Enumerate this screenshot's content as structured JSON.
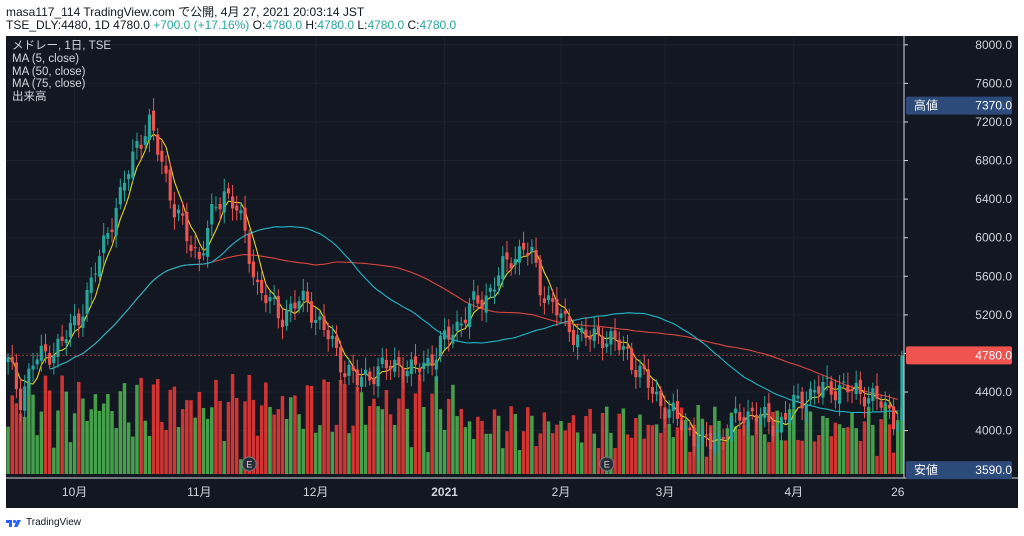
{
  "header": {
    "line1": "masa117_114 TradingView.com で公開, 4月 27, 2021 20:03:14 JST",
    "symbol_prefix": "TSE_DLY:4480, 1D 4780.0",
    "change": "+700.0 (+17.16%)",
    "ohlc": [
      {
        "label": "O:",
        "value": "4780.0"
      },
      {
        "label": "H:",
        "value": "4780.0"
      },
      {
        "label": "L:",
        "value": "4780.0"
      },
      {
        "label": "C:",
        "value": "4780.0"
      }
    ]
  },
  "legend": [
    "メドレー, 1日, TSE",
    "MA (5, close)",
    "MA (50, close)",
    "MA (75, close)",
    "出来高"
  ],
  "footer": {
    "brand": "TradingView"
  },
  "colors": {
    "up": "#26a69a",
    "down": "#ef5350",
    "vol_up": "#4caf50",
    "vol_down": "#e53935",
    "ma5": "#e6d21e",
    "ma50": "#1fb7c8",
    "ma75": "#d9463e",
    "bg": "#131722",
    "text": "#d1d4dc"
  },
  "chart_data": {
    "type": "candlestick",
    "y_ticks": [
      "8000.0",
      "7600.0",
      "7200.0",
      "6800.0",
      "6400.0",
      "6000.0",
      "5600.0",
      "5200.0",
      "4800.0",
      "4400.0",
      "4000.0"
    ],
    "y_tick_values": [
      8000,
      7600,
      7200,
      6800,
      6400,
      6000,
      5600,
      5200,
      4800,
      4400,
      4000
    ],
    "ylim": [
      3550,
      8050
    ],
    "x_labels": [
      {
        "label": "10月",
        "index": 16
      },
      {
        "label": "11月",
        "index": 46
      },
      {
        "label": "12月",
        "index": 74
      },
      {
        "label": "2021",
        "index": 105
      },
      {
        "label": "2月",
        "index": 133
      },
      {
        "label": "3月",
        "index": 158
      },
      {
        "label": "4月",
        "index": 189
      },
      {
        "label": "26",
        "index": 214
      }
    ],
    "price_labels": [
      {
        "label": "高値",
        "value": "7370.0",
        "price": 7370,
        "color": "#2c4a7a"
      },
      {
        "label": "",
        "value": "4780.0",
        "price": 4780,
        "color": "#ef5350"
      },
      {
        "label": "安値",
        "value": "3590.0",
        "price": 3590,
        "color": "#2c4a7a"
      }
    ],
    "earnings_markers": [
      {
        "label": "E",
        "index": 58
      },
      {
        "label": "E",
        "index": 144
      }
    ],
    "anchors": [
      [
        0,
        4700
      ],
      [
        3,
        4350
      ],
      [
        6,
        4700
      ],
      [
        9,
        4800
      ],
      [
        13,
        4900
      ],
      [
        17,
        5200
      ],
      [
        20,
        5500
      ],
      [
        24,
        6100
      ],
      [
        27,
        6400
      ],
      [
        31,
        7000
      ],
      [
        34,
        7150
      ],
      [
        37,
        6800
      ],
      [
        40,
        6300
      ],
      [
        43,
        6000
      ],
      [
        46,
        5800
      ],
      [
        49,
        6200
      ],
      [
        52,
        6500
      ],
      [
        55,
        6300
      ],
      [
        57,
        6000
      ],
      [
        60,
        5500
      ],
      [
        63,
        5300
      ],
      [
        66,
        5200
      ],
      [
        69,
        5300
      ],
      [
        72,
        5350
      ],
      [
        75,
        5100
      ],
      [
        78,
        4900
      ],
      [
        81,
        4650
      ],
      [
        84,
        4500
      ],
      [
        87,
        4600
      ],
      [
        91,
        4650
      ],
      [
        94,
        4700
      ],
      [
        97,
        4600
      ],
      [
        100,
        4700
      ],
      [
        103,
        4800
      ],
      [
        106,
        5000
      ],
      [
        109,
        5150
      ],
      [
        112,
        5300
      ],
      [
        115,
        5400
      ],
      [
        118,
        5600
      ],
      [
        121,
        5800
      ],
      [
        124,
        5900
      ],
      [
        126,
        5800
      ],
      [
        128,
        5500
      ],
      [
        131,
        5300
      ],
      [
        134,
        5100
      ],
      [
        137,
        5000
      ],
      [
        140,
        4950
      ],
      [
        143,
        5000
      ],
      [
        146,
        4900
      ],
      [
        149,
        4800
      ],
      [
        152,
        4600
      ],
      [
        155,
        4400
      ],
      [
        158,
        4250
      ],
      [
        161,
        4100
      ],
      [
        164,
        4000
      ],
      [
        167,
        3850
      ],
      [
        170,
        3900
      ],
      [
        173,
        4000
      ],
      [
        176,
        4150
      ],
      [
        179,
        4200
      ],
      [
        182,
        4100
      ],
      [
        185,
        4050
      ],
      [
        188,
        4200
      ],
      [
        191,
        4350
      ],
      [
        194,
        4400
      ],
      [
        197,
        4450
      ],
      [
        200,
        4450
      ],
      [
        203,
        4400
      ],
      [
        206,
        4400
      ],
      [
        209,
        4300
      ],
      [
        212,
        4200
      ],
      [
        214,
        4080
      ],
      [
        215,
        4780
      ]
    ]
  }
}
